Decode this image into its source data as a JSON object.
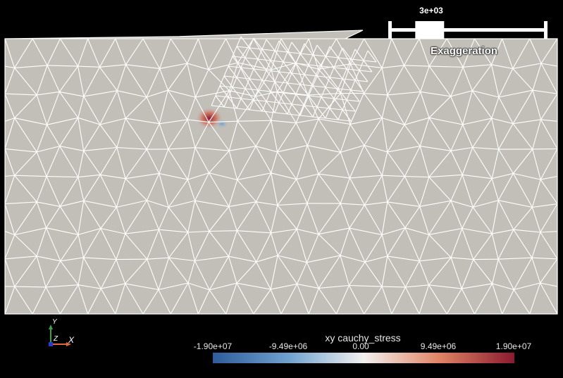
{
  "exaggeration_slider": {
    "label": "Exaggeration",
    "value_text": "3e+03",
    "handle_position": 0.19
  },
  "colorbar": {
    "title": "xy cauchy_stress",
    "ticks": [
      "-1.90e+07",
      "-9.49e+06",
      "0.00",
      "9.49e+06",
      "1.90e+07"
    ],
    "min": -19000000,
    "max": 19000000,
    "colors": [
      "#2f5c9a",
      "#6fa1cf",
      "#f2f0ef",
      "#e08465",
      "#8b1a2f"
    ]
  },
  "axes": {
    "x": "X",
    "y": "Y",
    "z": "Z"
  },
  "colors": {
    "background": "#000000",
    "mesh_fill": "#c2bfb9",
    "mesh_edge": "#ffffff",
    "axis_x": "#e06a3a",
    "axis_y": "#3aa14a",
    "axis_z": "#2a3bd1"
  }
}
